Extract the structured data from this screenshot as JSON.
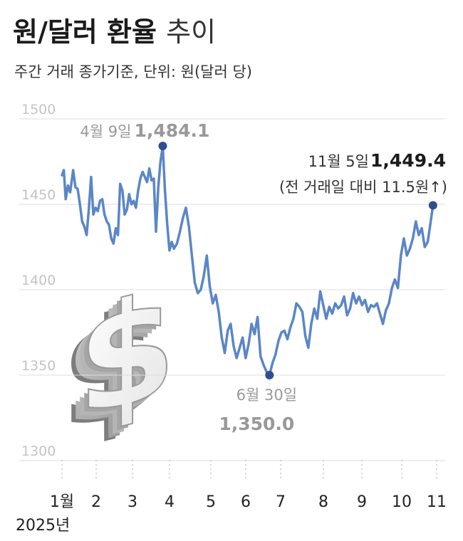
{
  "header": {
    "title_bold": "원/달러 환율",
    "title_light": "추이",
    "subtitle": "주간 거래 종가기준, 단위: 원(달러 당)"
  },
  "colors": {
    "line": "#5b86c6",
    "dot": "#2f4f8a",
    "grid": "#dcdcdc",
    "tick": "#c4c4c4"
  },
  "illustration": {
    "icon": "dollar-sign-3d-icon"
  },
  "chart_data": {
    "type": "line",
    "title": "원/달러 환율 추이",
    "subtitle": "주간 거래 종가기준, 단위: 원(달러 당)",
    "ylim": [
      1290,
      1510
    ],
    "yticks": [
      1500,
      1450,
      1400,
      1350,
      1300
    ],
    "xtick_labels": [
      "1월",
      "2",
      "3",
      "4",
      "5",
      "6",
      "7",
      "8",
      "9",
      "10",
      "11"
    ],
    "year_label": "2025년",
    "grid": "horizontal",
    "series": [
      {
        "values": [
          [
            1.0,
            1467
          ],
          [
            1.05,
            1470
          ],
          [
            1.1,
            1453
          ],
          [
            1.16,
            1461
          ],
          [
            1.22,
            1457
          ],
          [
            1.3,
            1470
          ],
          [
            1.36,
            1460
          ],
          [
            1.42,
            1459
          ],
          [
            1.48,
            1450
          ],
          [
            1.54,
            1440
          ],
          [
            1.6,
            1437
          ],
          [
            1.66,
            1432
          ],
          [
            1.72,
            1447
          ],
          [
            1.78,
            1466
          ],
          [
            1.84,
            1444
          ],
          [
            1.9,
            1448
          ],
          [
            1.96,
            1446
          ],
          [
            2.02,
            1452
          ],
          [
            2.08,
            1453
          ],
          [
            2.14,
            1444
          ],
          [
            2.2,
            1440
          ],
          [
            2.26,
            1438
          ],
          [
            2.32,
            1430
          ],
          [
            2.38,
            1427
          ],
          [
            2.44,
            1436
          ],
          [
            2.5,
            1432
          ],
          [
            2.56,
            1462
          ],
          [
            2.62,
            1458
          ],
          [
            2.68,
            1444
          ],
          [
            2.74,
            1447
          ],
          [
            2.8,
            1456
          ],
          [
            2.86,
            1450
          ],
          [
            2.92,
            1452
          ],
          [
            2.98,
            1448
          ],
          [
            3.04,
            1458
          ],
          [
            3.1,
            1465
          ],
          [
            3.16,
            1469
          ],
          [
            3.22,
            1466
          ],
          [
            3.28,
            1463
          ],
          [
            3.34,
            1471
          ],
          [
            3.4,
            1464
          ],
          [
            3.46,
            1465
          ],
          [
            3.52,
            1434
          ],
          [
            3.58,
            1460
          ],
          [
            3.64,
            1475
          ],
          [
            3.7,
            1484.1
          ],
          [
            3.76,
            1458
          ],
          [
            3.82,
            1438
          ],
          [
            3.88,
            1423
          ],
          [
            3.94,
            1428
          ],
          [
            4.0,
            1424
          ],
          [
            4.08,
            1427
          ],
          [
            4.16,
            1434
          ],
          [
            4.24,
            1442
          ],
          [
            4.32,
            1448
          ],
          [
            4.4,
            1437
          ],
          [
            4.48,
            1420
          ],
          [
            4.56,
            1404
          ],
          [
            4.64,
            1398
          ],
          [
            4.72,
            1400
          ],
          [
            4.8,
            1408
          ],
          [
            4.88,
            1420
          ],
          [
            4.96,
            1402
          ],
          [
            5.04,
            1392
          ],
          [
            5.12,
            1397
          ],
          [
            5.2,
            1387
          ],
          [
            5.28,
            1372
          ],
          [
            5.36,
            1363
          ],
          [
            5.44,
            1376
          ],
          [
            5.52,
            1380
          ],
          [
            5.6,
            1367
          ],
          [
            5.68,
            1360
          ],
          [
            5.76,
            1366
          ],
          [
            5.84,
            1372
          ],
          [
            5.92,
            1360
          ],
          [
            6.0,
            1368
          ],
          [
            6.08,
            1380
          ],
          [
            6.16,
            1374
          ],
          [
            6.24,
            1384
          ],
          [
            6.32,
            1361
          ],
          [
            6.4,
            1356
          ],
          [
            6.48,
            1352
          ],
          [
            6.56,
            1350.0
          ],
          [
            6.64,
            1357
          ],
          [
            6.72,
            1362
          ],
          [
            6.8,
            1370
          ],
          [
            6.88,
            1375
          ],
          [
            6.96,
            1376
          ],
          [
            7.04,
            1371
          ],
          [
            7.12,
            1378
          ],
          [
            7.2,
            1383
          ],
          [
            7.28,
            1392
          ],
          [
            7.36,
            1390
          ],
          [
            7.44,
            1387
          ],
          [
            7.52,
            1373
          ],
          [
            7.6,
            1366
          ],
          [
            7.68,
            1380
          ],
          [
            7.76,
            1389
          ],
          [
            7.84,
            1383
          ],
          [
            7.92,
            1399
          ],
          [
            8.0,
            1391
          ],
          [
            8.08,
            1383
          ],
          [
            8.16,
            1390
          ],
          [
            8.24,
            1386
          ],
          [
            8.32,
            1392
          ],
          [
            8.4,
            1389
          ],
          [
            8.48,
            1391
          ],
          [
            8.56,
            1396
          ],
          [
            8.64,
            1385
          ],
          [
            8.72,
            1389
          ],
          [
            8.8,
            1398
          ],
          [
            8.88,
            1392
          ],
          [
            8.96,
            1396
          ],
          [
            9.04,
            1391
          ],
          [
            9.12,
            1394
          ],
          [
            9.2,
            1387
          ],
          [
            9.28,
            1391
          ],
          [
            9.36,
            1390
          ],
          [
            9.44,
            1392
          ],
          [
            9.52,
            1386
          ],
          [
            9.6,
            1380
          ],
          [
            9.68,
            1388
          ],
          [
            9.76,
            1392
          ],
          [
            9.84,
            1401
          ],
          [
            9.92,
            1406
          ],
          [
            10.0,
            1401
          ],
          [
            10.08,
            1420
          ],
          [
            10.16,
            1430
          ],
          [
            10.24,
            1420
          ],
          [
            10.32,
            1424
          ],
          [
            10.4,
            1430
          ],
          [
            10.48,
            1440
          ],
          [
            10.56,
            1432
          ],
          [
            10.64,
            1436
          ],
          [
            10.72,
            1425
          ],
          [
            10.8,
            1428
          ],
          [
            10.88,
            1440
          ],
          [
            10.94,
            1449.4
          ]
        ]
      }
    ],
    "annotations": [
      {
        "x": 3.7,
        "y": 1484.1,
        "date": "4월 9일",
        "value": "1,484.1"
      },
      {
        "x": 6.56,
        "y": 1350.0,
        "date": "6월 30일",
        "value": "1,350.0"
      },
      {
        "x": 10.94,
        "y": 1449.4,
        "date": "11월 5일",
        "value": "1,449.4",
        "note": "(전 거래일 대비 11.5원↑)"
      }
    ]
  }
}
